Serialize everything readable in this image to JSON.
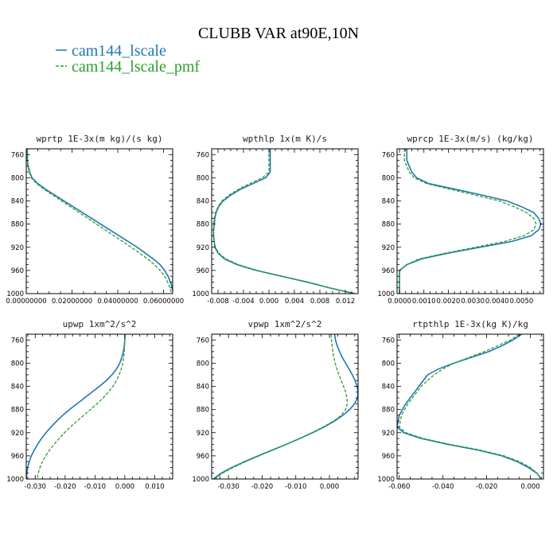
{
  "figure": {
    "title": "CLUBB VAR at90E,10N"
  },
  "colors": {
    "series1": "#1f77b4",
    "series2": "#2ca02c",
    "axes": "#000000",
    "background": "#ffffff"
  },
  "legend": {
    "placement": "top-left",
    "entries": [
      {
        "name": "cam144_lscale",
        "color": "#1f77b4"
      },
      {
        "name": "cam144_lscale_pmf",
        "color": "#2ca02c"
      }
    ]
  },
  "chart_data": [
    {
      "type": "line",
      "title": "wprtp  1E-3x(m kg)/(s kg)",
      "xlim": [
        0,
        0.064
      ],
      "ylim": [
        1000,
        750
      ],
      "x_ticks": [
        "0.00000000",
        "0.02000000",
        "0.04000000",
        "0.06000000"
      ],
      "x_tick_values": [
        0,
        0.02,
        0.04,
        0.06
      ],
      "y_ticks": [
        "760",
        "800",
        "840",
        "880",
        "920",
        "960",
        "1000"
      ],
      "y": [
        750,
        760,
        770,
        780,
        790,
        800,
        810,
        820,
        830,
        840,
        850,
        860,
        870,
        880,
        890,
        900,
        910,
        920,
        930,
        940,
        950,
        960,
        970,
        980,
        990,
        1000
      ],
      "series": [
        {
          "name": "cam144_lscale",
          "values": [
            0.0005,
            0.0005,
            0.0005,
            0.0008,
            0.0015,
            0.0025,
            0.005,
            0.0085,
            0.0125,
            0.0165,
            0.0205,
            0.0245,
            0.0285,
            0.0325,
            0.0365,
            0.0405,
            0.0445,
            0.0485,
            0.052,
            0.0555,
            0.0585,
            0.0605,
            0.062,
            0.063,
            0.0638,
            0.0643
          ]
        },
        {
          "name": "cam144_lscale_pmf",
          "values": [
            0.0005,
            0.0005,
            0.0005,
            0.0007,
            0.0013,
            0.0022,
            0.0045,
            0.0078,
            0.0116,
            0.0155,
            0.0193,
            0.0231,
            0.0269,
            0.0307,
            0.0345,
            0.0383,
            0.0421,
            0.0459,
            0.0495,
            0.053,
            0.056,
            0.0585,
            0.0605,
            0.0618,
            0.0628,
            0.0635
          ]
        }
      ]
    },
    {
      "type": "line",
      "title": "wpthlp  1x(m K)/s",
      "xlim": [
        -0.009,
        0.014
      ],
      "ylim": [
        1000,
        750
      ],
      "x_ticks": [
        "-0.008",
        "-0.004",
        "0.000",
        "0.004",
        "0.008",
        "0.012"
      ],
      "x_tick_values": [
        -0.008,
        -0.004,
        0,
        0.004,
        0.008,
        0.012
      ],
      "y_ticks": [
        "760",
        "800",
        "840",
        "880",
        "920",
        "960",
        "1000"
      ],
      "y": [
        750,
        760,
        770,
        780,
        790,
        800,
        810,
        820,
        830,
        840,
        850,
        860,
        870,
        880,
        890,
        900,
        910,
        920,
        930,
        940,
        950,
        960,
        970,
        980,
        990,
        1000
      ],
      "series": [
        {
          "name": "cam144_lscale",
          "values": [
            0.0002,
            0.0002,
            0.0002,
            0.0002,
            0.0002,
            -0.0005,
            -0.0025,
            -0.0045,
            -0.006,
            -0.0072,
            -0.0079,
            -0.0083,
            -0.0085,
            -0.0086,
            -0.0087,
            -0.0087,
            -0.0086,
            -0.0085,
            -0.008,
            -0.007,
            -0.005,
            -0.002,
            0.002,
            0.006,
            0.0095,
            0.0135
          ]
        },
        {
          "name": "cam144_lscale_pmf",
          "values": [
            0.0,
            0.0,
            0.0,
            0.0,
            0.0,
            -0.001,
            -0.003,
            -0.0048,
            -0.0063,
            -0.0074,
            -0.008,
            -0.0084,
            -0.0086,
            -0.0087,
            -0.0087,
            -0.0087,
            -0.0086,
            -0.0084,
            -0.0079,
            -0.0068,
            -0.0048,
            -0.0018,
            0.002,
            0.0058,
            0.0095,
            0.0133
          ]
        }
      ]
    },
    {
      "type": "line",
      "title": "wprcp  1E-3x(m/s) (kg/kg)",
      "xlim": [
        -0.0001,
        0.0059
      ],
      "ylim": [
        1000,
        750
      ],
      "x_ticks": [
        "0.0000",
        "0.0010",
        "0.0020",
        "0.0030",
        "0.0040",
        "0.0050"
      ],
      "x_tick_values": [
        0,
        0.001,
        0.002,
        0.003,
        0.004,
        0.005
      ],
      "y_ticks": [
        "760",
        "800",
        "840",
        "880",
        "920",
        "960",
        "1000"
      ],
      "y": [
        750,
        760,
        770,
        780,
        790,
        800,
        810,
        820,
        830,
        840,
        850,
        860,
        870,
        880,
        890,
        900,
        910,
        920,
        930,
        940,
        950,
        960,
        970,
        980,
        990,
        1000
      ],
      "series": [
        {
          "name": "cam144_lscale",
          "values": [
            0.0003,
            0.0003,
            0.0003,
            0.0004,
            0.0005,
            0.0007,
            0.0012,
            0.0023,
            0.0034,
            0.0044,
            0.005,
            0.0055,
            0.0057,
            0.0058,
            0.0057,
            0.0054,
            0.0046,
            0.0033,
            0.002,
            0.0009,
            0.0003,
            0.0,
            0.0,
            0.0,
            0.0,
            0.0
          ]
        },
        {
          "name": "cam144_lscale_pmf",
          "values": [
            0.0002,
            0.0002,
            0.0002,
            0.0003,
            0.0004,
            0.0006,
            0.0011,
            0.0021,
            0.0031,
            0.0041,
            0.0047,
            0.0052,
            0.0055,
            0.0056,
            0.0055,
            0.0051,
            0.0043,
            0.0031,
            0.0019,
            0.0008,
            0.0003,
            0.0,
            0.0,
            0.0,
            0.0,
            0.0
          ]
        }
      ]
    },
    {
      "type": "line",
      "title": "upwp  1xm^2/s^2",
      "xlim": [
        -0.033,
        0.016
      ],
      "ylim": [
        1000,
        750
      ],
      "x_ticks": [
        "-0.030",
        "-0.020",
        "-0.010",
        "0.000",
        "0.010"
      ],
      "x_tick_values": [
        -0.03,
        -0.02,
        -0.01,
        0,
        0.01
      ],
      "y_ticks": [
        "760",
        "800",
        "840",
        "880",
        "920",
        "960",
        "1000"
      ],
      "y": [
        750,
        760,
        770,
        780,
        790,
        800,
        810,
        820,
        830,
        840,
        850,
        860,
        870,
        880,
        890,
        900,
        910,
        920,
        930,
        940,
        950,
        960,
        970,
        980,
        990,
        1000
      ],
      "series": [
        {
          "name": "cam144_lscale",
          "values": [
            0.0,
            0.0,
            -0.0002,
            -0.0005,
            -0.001,
            -0.0017,
            -0.0028,
            -0.0043,
            -0.0062,
            -0.0085,
            -0.011,
            -0.0135,
            -0.016,
            -0.0185,
            -0.0208,
            -0.0228,
            -0.0247,
            -0.0264,
            -0.0279,
            -0.0292,
            -0.0303,
            -0.0313,
            -0.032,
            -0.0325,
            -0.0328,
            -0.033
          ]
        },
        {
          "name": "cam144_lscale_pmf",
          "values": [
            0.0,
            0.0,
            -0.0001,
            -0.0002,
            -0.0004,
            -0.0007,
            -0.0012,
            -0.0019,
            -0.0028,
            -0.004,
            -0.0055,
            -0.0073,
            -0.0093,
            -0.0115,
            -0.0138,
            -0.016,
            -0.0182,
            -0.0202,
            -0.022,
            -0.0237,
            -0.0252,
            -0.0265,
            -0.0276,
            -0.0284,
            -0.029,
            -0.0294
          ]
        }
      ]
    },
    {
      "type": "line",
      "title": "vpwp  1xm^2/s^2",
      "xlim": [
        -0.035,
        0.0085
      ],
      "ylim": [
        1000,
        750
      ],
      "x_ticks": [
        "-0.030",
        "-0.020",
        "-0.010",
        "0.000"
      ],
      "x_tick_values": [
        -0.03,
        -0.02,
        -0.01,
        0
      ],
      "y_ticks": [
        "760",
        "800",
        "840",
        "880",
        "920",
        "960",
        "1000"
      ],
      "y": [
        750,
        760,
        770,
        780,
        790,
        800,
        810,
        820,
        830,
        840,
        850,
        860,
        870,
        880,
        890,
        900,
        910,
        920,
        930,
        940,
        950,
        960,
        970,
        980,
        990,
        1000
      ],
      "series": [
        {
          "name": "cam144_lscale",
          "values": [
            0.0015,
            0.0018,
            0.0023,
            0.003,
            0.0038,
            0.0048,
            0.0058,
            0.0068,
            0.0076,
            0.0082,
            0.0085,
            0.0083,
            0.0075,
            0.006,
            0.004,
            0.0015,
            -0.0015,
            -0.005,
            -0.0088,
            -0.0128,
            -0.017,
            -0.0212,
            -0.0252,
            -0.029,
            -0.0322,
            -0.0345
          ]
        },
        {
          "name": "cam144_lscale_pmf",
          "values": [
            0.0005,
            0.0006,
            0.0008,
            0.001,
            0.0013,
            0.0017,
            0.0022,
            0.0028,
            0.0035,
            0.0042,
            0.0048,
            0.0052,
            0.0053,
            0.0048,
            0.0035,
            0.0012,
            -0.0018,
            -0.0052,
            -0.0088,
            -0.0127,
            -0.0168,
            -0.0209,
            -0.0249,
            -0.0286,
            -0.0318,
            -0.034
          ]
        }
      ]
    },
    {
      "type": "line",
      "title": "rtpthlp  1E-3x(kg K)/kg",
      "xlim": [
        -0.061,
        0.006
      ],
      "ylim": [
        1000,
        750
      ],
      "x_ticks": [
        "-0.060",
        "-0.040",
        "-0.020",
        "0.000"
      ],
      "x_tick_values": [
        -0.06,
        -0.04,
        -0.02,
        0
      ],
      "y_ticks": [
        "760",
        "800",
        "840",
        "880",
        "920",
        "960",
        "1000"
      ],
      "y": [
        750,
        760,
        770,
        780,
        790,
        800,
        810,
        820,
        830,
        840,
        850,
        860,
        870,
        880,
        890,
        900,
        910,
        920,
        930,
        940,
        950,
        960,
        970,
        980,
        990,
        1000
      ],
      "series": [
        {
          "name": "cam144_lscale",
          "values": [
            -0.004,
            -0.008,
            -0.013,
            -0.019,
            -0.027,
            -0.035,
            -0.042,
            -0.047,
            -0.049,
            -0.051,
            -0.053,
            -0.055,
            -0.057,
            -0.0585,
            -0.06,
            -0.0605,
            -0.061,
            -0.058,
            -0.05,
            -0.038,
            -0.024,
            -0.013,
            -0.006,
            -0.001,
            0.003,
            0.005
          ]
        },
        {
          "name": "cam144_lscale_pmf",
          "values": [
            -0.005,
            -0.009,
            -0.015,
            -0.021,
            -0.028,
            -0.035,
            -0.04,
            -0.044,
            -0.047,
            -0.05,
            -0.052,
            -0.054,
            -0.056,
            -0.0575,
            -0.059,
            -0.0595,
            -0.06,
            -0.057,
            -0.049,
            -0.037,
            -0.023,
            -0.012,
            -0.005,
            0.0,
            0.003,
            0.005
          ]
        }
      ]
    }
  ]
}
